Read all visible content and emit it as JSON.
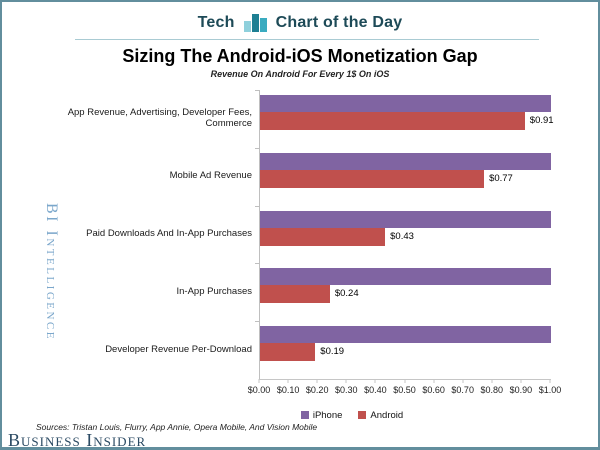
{
  "header": {
    "section_label": "Tech",
    "title_label": "Chart of the Day",
    "icon": "bar-chart-icon",
    "icon_colors": [
      "#8fd0dc",
      "#1d7f93",
      "#3aabc0"
    ],
    "text_color": "#1d4a57"
  },
  "branding": {
    "bi_intelligence": "BI Intelligence",
    "business_insider": "Business Insider"
  },
  "footer": {
    "sources": "Sources: Tristan Louis, Flurry, App Annie, Opera Mobile, And Vision Mobile"
  },
  "chart_data": {
    "type": "bar",
    "orientation": "horizontal",
    "title": "Sizing The Android-iOS Monetization Gap",
    "subtitle": "Revenue On Android For Every 1$ On iOS",
    "categories": [
      "App Revenue, Advertising, Developer Fees, Commerce",
      "Mobile Ad Revenue",
      "Paid Downloads And In-App Purchases",
      "In-App Purchases",
      "Developer Revenue Per-Download"
    ],
    "series": [
      {
        "name": "iPhone",
        "color": "#8064a2",
        "values": [
          1.0,
          1.0,
          1.0,
          1.0,
          1.0
        ],
        "labels": [
          "",
          "",
          "",
          "",
          ""
        ]
      },
      {
        "name": "Android",
        "color": "#c0504d",
        "values": [
          0.91,
          0.77,
          0.43,
          0.24,
          0.19
        ],
        "labels": [
          "$0.91",
          "$0.77",
          "$0.43",
          "$0.24",
          "$0.19"
        ]
      }
    ],
    "xlim": [
      0,
      1
    ],
    "x_ticks": [
      "$0.00",
      "$0.10",
      "$0.20",
      "$0.30",
      "$0.40",
      "$0.50",
      "$0.60",
      "$0.70",
      "$0.80",
      "$0.90",
      "$1.00"
    ],
    "grid": false,
    "legend_position": "bottom",
    "axis_color": "#bfbfbf"
  }
}
